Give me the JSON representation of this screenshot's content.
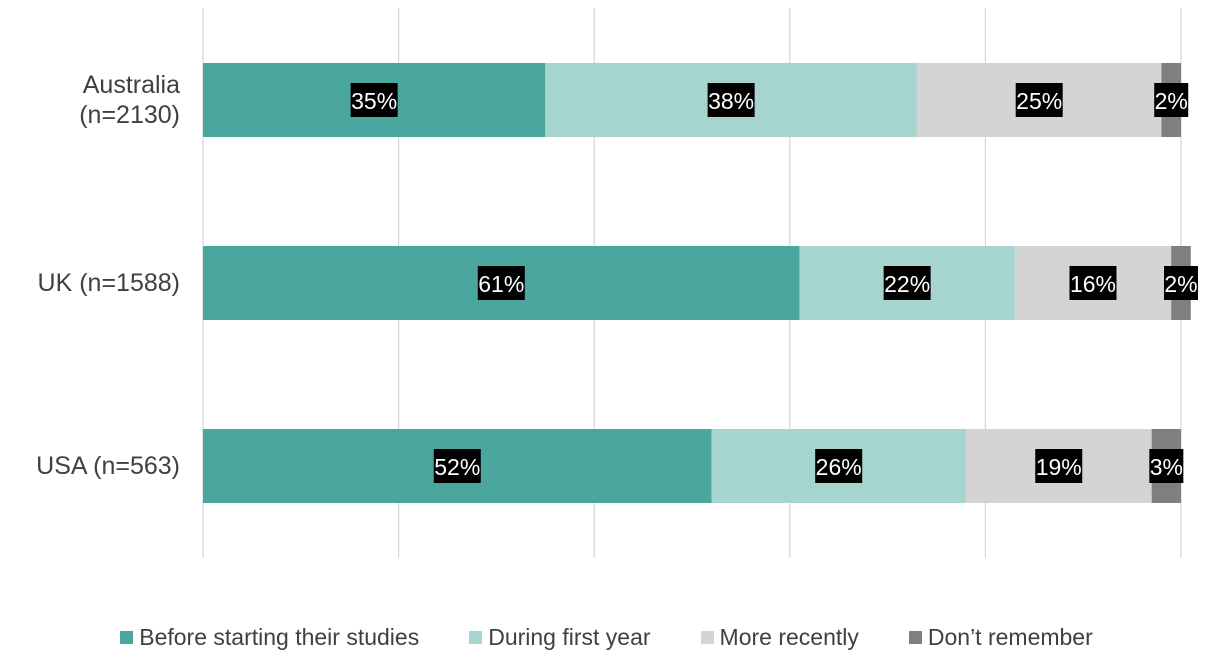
{
  "chart_data": {
    "type": "bar",
    "orientation": "horizontal",
    "stacked": true,
    "title": "",
    "xlabel": "",
    "ylabel": "",
    "xlim": [
      0,
      100
    ],
    "grid": true,
    "legend_position": "bottom",
    "categories": [
      [
        "Australia",
        "(n=2130)"
      ],
      [
        "UK (n=1588)"
      ],
      [
        "USA (n=563)"
      ]
    ],
    "series": [
      {
        "name": "Before starting their studies",
        "color": "#4ba79d",
        "values": [
          35,
          61,
          52
        ],
        "labels": [
          "35%",
          "61%",
          "52%"
        ]
      },
      {
        "name": "During first year",
        "color": "#a5d5ce",
        "values": [
          38,
          22,
          26
        ],
        "labels": [
          "38%",
          "22%",
          "26%"
        ]
      },
      {
        "name": "More recently",
        "color": "#d4d4d4",
        "values": [
          25,
          16,
          19
        ],
        "labels": [
          "25%",
          "16%",
          "19%"
        ]
      },
      {
        "name": "Don’t remember",
        "color": "#7f7f7f",
        "values": [
          2,
          2,
          3
        ],
        "labels": [
          "2%",
          "2%",
          "3%"
        ]
      }
    ]
  }
}
